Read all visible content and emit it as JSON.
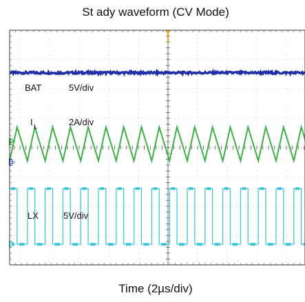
{
  "chart_data": {
    "type": "line",
    "title": "St ady waveform (CV Mode)",
    "xlabel": "Time (2µs/div)",
    "ylabel": "",
    "grid": true,
    "x_divisions": 10,
    "y_divisions": 8,
    "xlim": [
      0,
      20
    ],
    "x_unit": "µs",
    "colors": {
      "BAT": "#1f2fa8",
      "IL": "#3cb043",
      "LX": "#3fc6d6",
      "trigger": "#f0a020",
      "grid": "#b8b8b8",
      "frame": "#333333"
    },
    "channels": [
      {
        "id": "BAT",
        "label": "BAT",
        "label_sub": "",
        "scale_label": "5V/div",
        "waveform": "dc",
        "level_div": 2.55,
        "noise_div": 0.04
      },
      {
        "id": "IL",
        "label": "I",
        "label_sub": "L",
        "scale_label": "2A/div",
        "waveform": "triangle",
        "period_us": 1.2,
        "min_div": -0.45,
        "max_div": 0.7
      },
      {
        "id": "LX",
        "label": "LX",
        "label_sub": "",
        "scale_label": "5V/div",
        "waveform": "square",
        "period_us": 1.2,
        "high_div": -1.4,
        "low_div": -3.3,
        "high_fraction": 0.42
      }
    ],
    "ground_markers": [
      {
        "id": "IL",
        "text": "1",
        "level_div": 0.2
      },
      {
        "id": "BAT",
        "text": "B",
        "level_div": -0.5
      },
      {
        "id": "LX",
        "text": "L",
        "level_div": -3.3
      }
    ]
  }
}
